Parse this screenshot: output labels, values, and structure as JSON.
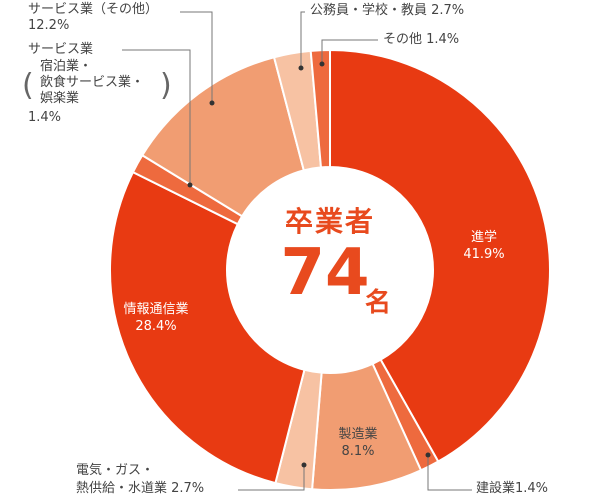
{
  "chart_data": {
    "type": "pie",
    "title": "卒業者",
    "total": "74",
    "total_unit": "名",
    "colors": {
      "primary": "#e83a12",
      "secondary": "#ee6a3e",
      "tertiary": "#f19d72",
      "light": "#f7c2a3"
    },
    "slices": [
      {
        "name": "進学",
        "value": 41.9,
        "label": "41.9%",
        "color": "#e83a12"
      },
      {
        "name": "建設業",
        "value": 1.4,
        "label": "1.4%",
        "color": "#ee6a3e"
      },
      {
        "name": "製造業",
        "value": 8.1,
        "label": "8.1%",
        "color": "#f19d72"
      },
      {
        "name": "電気・ガス・熱供給・水道業",
        "value": 2.7,
        "label": "2.7%",
        "color": "#f7c2a3"
      },
      {
        "name": "情報通信業",
        "value": 28.4,
        "label": "28.4%",
        "color": "#e83a12"
      },
      {
        "name": "サービス業（宿泊業・飲食サービス業・娯楽業）",
        "value": 1.4,
        "label": "1.4%",
        "color": "#ee6a3e"
      },
      {
        "name": "サービス業（その他）",
        "value": 12.2,
        "label": "12.2%",
        "color": "#f19d72"
      },
      {
        "name": "公務員・学校・教員",
        "value": 2.7,
        "label": "2.7%",
        "color": "#f7c2a3"
      },
      {
        "name": "その他",
        "value": 1.4,
        "label": "1.4%",
        "color": "#ee6a3e"
      }
    ],
    "labels": {
      "shingaku_name": "進学",
      "kensetsu": "建設業1.4%",
      "seizo_name": "製造業",
      "denki_line1": "電気・ガス・",
      "denki_line2": "熱供給・水道業 2.7%",
      "joho_name": "情報通信業",
      "service1_line1": "サービス業",
      "service1_line2": "宿泊業・",
      "service1_line3": "飲食サービス業・",
      "service1_line4": "娯楽業",
      "service1_pct": "1.4%",
      "service2_name": "サービス業（その他）",
      "service2_pct": "12.2%",
      "komuin": "公務員・学校・教員 2.7%",
      "sonota": "その他 1.4%"
    }
  }
}
